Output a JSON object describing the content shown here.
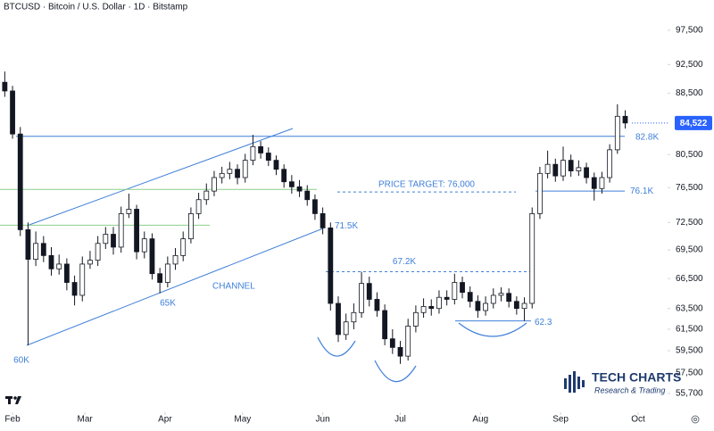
{
  "chart_data": {
    "type": "candlestick",
    "title": "BTCUSD · Bitcoin / U.S. Dollar · 1D · Bitstamp",
    "x": [
      -3,
      0,
      3,
      6,
      9,
      12,
      15,
      18,
      21,
      24,
      27,
      30,
      33,
      36,
      39,
      42,
      45,
      48,
      51,
      54,
      57,
      60,
      63,
      66,
      69,
      72,
      75,
      78,
      81,
      84,
      87,
      90,
      93,
      96,
      99,
      102,
      105,
      108,
      111,
      114,
      117,
      120,
      123,
      126,
      129,
      132,
      135,
      138,
      141,
      144,
      147,
      150,
      153,
      156,
      159,
      162,
      165,
      168,
      171,
      174,
      177,
      180,
      183,
      186,
      189,
      192,
      195,
      198,
      201,
      204,
      207,
      210,
      213,
      216,
      219,
      222,
      225,
      228,
      231,
      234,
      237
    ],
    "open": [
      90000,
      88800,
      83100,
      71700,
      68500,
      70200,
      68900,
      67500,
      68000,
      66100,
      64800,
      68000,
      68400,
      70200,
      71200,
      69800,
      73500,
      74000,
      69300,
      70700,
      67000,
      66100,
      68000,
      68900,
      70700,
      73500,
      75100,
      76100,
      77700,
      78200,
      78700,
      77700,
      79800,
      81500,
      80700,
      79800,
      78700,
      77200,
      76600,
      76100,
      75100,
      73500,
      71900,
      64000,
      61000,
      62200,
      63100,
      66000,
      64400,
      63300,
      60600,
      59800,
      59000,
      61800,
      63100,
      63700,
      63500,
      64600,
      64400,
      66100,
      65100,
      64200,
      63300,
      64000,
      64800,
      65000,
      64200,
      63500,
      64000,
      73500,
      78200,
      79300,
      77900,
      79800,
      78500,
      78900,
      77700,
      76400,
      77700,
      81100,
      85400
    ],
    "high": [
      91500,
      89500,
      84000,
      72500,
      71500,
      71000,
      69800,
      69000,
      68600,
      66800,
      68800,
      69400,
      71000,
      72000,
      72000,
      74300,
      75800,
      74500,
      71500,
      71300,
      67600,
      68800,
      69700,
      71500,
      74200,
      75900,
      77000,
      78500,
      79000,
      79600,
      79300,
      80600,
      83000,
      82200,
      81400,
      80400,
      79300,
      78000,
      77400,
      76800,
      75700,
      74200,
      72500,
      64700,
      63000,
      64000,
      67200,
      66700,
      65100,
      63900,
      61500,
      60400,
      62500,
      63800,
      64500,
      64400,
      65300,
      65300,
      67000,
      66700,
      65700,
      64800,
      64700,
      65500,
      65600,
      65500,
      64700,
      64600,
      74200,
      79000,
      81000,
      80000,
      81500,
      80500,
      79800,
      79500,
      78300,
      78400,
      81800,
      87000,
      86200
    ],
    "low": [
      88000,
      82500,
      71000,
      60000,
      67800,
      68200,
      66800,
      66900,
      65300,
      63800,
      64200,
      67500,
      67800,
      69600,
      69000,
      69200,
      73000,
      68500,
      68600,
      66400,
      65000,
      65600,
      67400,
      68300,
      70200,
      72900,
      74500,
      75500,
      77000,
      77500,
      76900,
      77100,
      79200,
      80000,
      79100,
      78000,
      76500,
      75800,
      75400,
      74400,
      72800,
      71200,
      63300,
      60300,
      60500,
      61500,
      62600,
      63700,
      62700,
      60000,
      59200,
      58300,
      58600,
      61200,
      62600,
      62800,
      63000,
      63800,
      63900,
      64500,
      63600,
      62600,
      62800,
      63500,
      64200,
      63600,
      62900,
      62300,
      63500,
      72900,
      77600,
      77200,
      77300,
      77800,
      77900,
      77000,
      75000,
      75800,
      77100,
      80600,
      83800
    ],
    "close": [
      88800,
      83100,
      71700,
      68500,
      70200,
      68900,
      67500,
      68000,
      66100,
      64800,
      68000,
      68400,
      70200,
      71200,
      69800,
      73500,
      74000,
      69300,
      70700,
      67000,
      66100,
      68000,
      68900,
      70700,
      73500,
      75100,
      76100,
      77700,
      78200,
      78700,
      77700,
      79800,
      81500,
      80700,
      79800,
      78700,
      77200,
      76600,
      76100,
      75100,
      73500,
      71900,
      64000,
      61000,
      62200,
      63100,
      66000,
      64400,
      63300,
      60600,
      59800,
      59000,
      61800,
      63100,
      63700,
      63500,
      64600,
      64400,
      66100,
      65100,
      64200,
      63300,
      64000,
      64800,
      65000,
      64200,
      63500,
      64000,
      73500,
      78200,
      79300,
      77900,
      79800,
      78500,
      78900,
      77700,
      76400,
      77700,
      81100,
      85400,
      84522
    ],
    "up_color": "#ffffff",
    "down_color": "#131722",
    "xlim": [
      -4.85,
      253.4
    ],
    "xticks": [
      {
        "value": 0,
        "label": "Feb"
      },
      {
        "value": 28,
        "label": "Mar"
      },
      {
        "value": 59,
        "label": "Apr"
      },
      {
        "value": 89,
        "label": "May"
      },
      {
        "value": 120,
        "label": "Jun"
      },
      {
        "value": 150,
        "label": "Jul"
      },
      {
        "value": 181,
        "label": "Aug"
      },
      {
        "value": 212,
        "label": "Sep"
      },
      {
        "value": 242,
        "label": "Oct"
      }
    ],
    "ylim": [
      54260,
      102170
    ],
    "log_y": true,
    "yticks": [
      {
        "value": 55700,
        "label": "55,700"
      },
      {
        "value": 57500,
        "label": "57,500"
      },
      {
        "value": 59500,
        "label": "59,500"
      },
      {
        "value": 61500,
        "label": "61,500"
      },
      {
        "value": 63500,
        "label": "63,500"
      },
      {
        "value": 66500,
        "label": "66,500"
      },
      {
        "value": 69500,
        "label": "69,500"
      },
      {
        "value": 72500,
        "label": "72,500"
      },
      {
        "value": 76500,
        "label": "76,500"
      },
      {
        "value": 80500,
        "label": "80,500"
      },
      {
        "value": 88500,
        "label": "88,500"
      },
      {
        "value": 92500,
        "label": "92,500"
      },
      {
        "value": 97500,
        "label": "97,500"
      }
    ],
    "last_price": {
      "value": 84522,
      "label": "84,522"
    },
    "annotation_color": "#3f7fd9",
    "levels": [
      {
        "value": 82800,
        "label": "82.8K"
      },
      {
        "value": 76100,
        "label": "76.1K"
      },
      {
        "value": 62300,
        "label": "62.3"
      },
      {
        "value": 67200,
        "label": "67.2K"
      },
      {
        "value": 76000,
        "label": "PRICE TARGET: 76,000"
      }
    ],
    "support_lines": {
      "color": "#8ccf8c",
      "values": [
        76300,
        72200
      ]
    },
    "annotations": [
      {
        "value": 71500,
        "label": "71.5K"
      },
      {
        "value": 60000,
        "label": "60K"
      },
      {
        "value": 65000,
        "label": "65K"
      }
    ],
    "channel_label": "CHANNEL",
    "watermark": {
      "name": "TECH CHARTS",
      "tagline": "Research & Trading"
    }
  }
}
